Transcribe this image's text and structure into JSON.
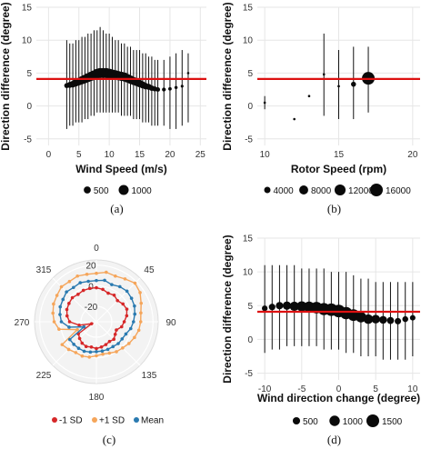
{
  "chart_data": [
    {
      "panel": "a",
      "caption": "(a)",
      "type": "scatter",
      "xlabel": "Wind Speed (m/s)",
      "ylabel": "Direction difference (degree)",
      "xlim": [
        -2,
        26
      ],
      "ylim": [
        -6,
        15
      ],
      "xticks": [
        "0",
        "5",
        "10",
        "15",
        "20",
        "25"
      ],
      "yticks": [
        "-5",
        "0",
        "5",
        "10",
        "15"
      ],
      "reference_line": 4.1,
      "reference_color": "#dd1111",
      "legend": {
        "title": "",
        "entries": [
          "500",
          "1000"
        ],
        "sizes": [
          500,
          1000
        ]
      },
      "points": [
        {
          "x": 3.0,
          "y": 3.1,
          "lo": -3.5,
          "hi": 10.0,
          "n": 250
        },
        {
          "x": 3.5,
          "y": 3.2,
          "lo": -3.0,
          "hi": 9.5,
          "n": 350
        },
        {
          "x": 4.0,
          "y": 3.3,
          "lo": -3.0,
          "hi": 9.5,
          "n": 450
        },
        {
          "x": 4.5,
          "y": 3.5,
          "lo": -2.5,
          "hi": 10.0,
          "n": 520
        },
        {
          "x": 5.0,
          "y": 3.7,
          "lo": -2.5,
          "hi": 10.0,
          "n": 600
        },
        {
          "x": 5.5,
          "y": 3.9,
          "lo": -2.5,
          "hi": 10.5,
          "n": 680
        },
        {
          "x": 6.0,
          "y": 4.1,
          "lo": -2.0,
          "hi": 10.5,
          "n": 750
        },
        {
          "x": 6.5,
          "y": 4.3,
          "lo": -2.0,
          "hi": 11.0,
          "n": 800
        },
        {
          "x": 7.0,
          "y": 4.5,
          "lo": -1.5,
          "hi": 11.0,
          "n": 850
        },
        {
          "x": 7.5,
          "y": 4.7,
          "lo": -1.5,
          "hi": 11.5,
          "n": 900
        },
        {
          "x": 8.0,
          "y": 4.9,
          "lo": -1.0,
          "hi": 11.5,
          "n": 950
        },
        {
          "x": 8.5,
          "y": 5.0,
          "lo": -1.0,
          "hi": 12.0,
          "n": 1000
        },
        {
          "x": 9.0,
          "y": 5.0,
          "lo": -1.0,
          "hi": 11.5,
          "n": 1000
        },
        {
          "x": 9.5,
          "y": 5.0,
          "lo": -1.0,
          "hi": 11.0,
          "n": 1000
        },
        {
          "x": 10.0,
          "y": 4.9,
          "lo": -1.0,
          "hi": 11.0,
          "n": 980
        },
        {
          "x": 10.5,
          "y": 4.8,
          "lo": -1.0,
          "hi": 10.5,
          "n": 950
        },
        {
          "x": 11.0,
          "y": 4.7,
          "lo": -1.0,
          "hi": 10.0,
          "n": 920
        },
        {
          "x": 11.5,
          "y": 4.6,
          "lo": -1.0,
          "hi": 10.0,
          "n": 880
        },
        {
          "x": 12.0,
          "y": 4.5,
          "lo": -1.5,
          "hi": 9.5,
          "n": 850
        },
        {
          "x": 12.5,
          "y": 4.4,
          "lo": -1.5,
          "hi": 9.5,
          "n": 800
        },
        {
          "x": 13.0,
          "y": 4.2,
          "lo": -1.5,
          "hi": 9.0,
          "n": 750
        },
        {
          "x": 13.5,
          "y": 4.0,
          "lo": -1.5,
          "hi": 9.0,
          "n": 700
        },
        {
          "x": 14.0,
          "y": 3.8,
          "lo": -2.0,
          "hi": 8.5,
          "n": 650
        },
        {
          "x": 14.5,
          "y": 3.6,
          "lo": -2.0,
          "hi": 8.5,
          "n": 600
        },
        {
          "x": 15.0,
          "y": 3.4,
          "lo": -2.0,
          "hi": 8.5,
          "n": 550
        },
        {
          "x": 15.5,
          "y": 3.2,
          "lo": -2.5,
          "hi": 8.0,
          "n": 480
        },
        {
          "x": 16.0,
          "y": 3.0,
          "lo": -2.5,
          "hi": 8.0,
          "n": 420
        },
        {
          "x": 16.5,
          "y": 2.9,
          "lo": -2.5,
          "hi": 7.5,
          "n": 360
        },
        {
          "x": 17.0,
          "y": 2.7,
          "lo": -3.0,
          "hi": 7.5,
          "n": 300
        },
        {
          "x": 17.5,
          "y": 2.6,
          "lo": -3.0,
          "hi": 7.0,
          "n": 250
        },
        {
          "x": 18.0,
          "y": 2.5,
          "lo": -3.0,
          "hi": 7.0,
          "n": 200
        },
        {
          "x": 19.0,
          "y": 2.5,
          "lo": -3.0,
          "hi": 7.0,
          "n": 150
        },
        {
          "x": 20.0,
          "y": 2.6,
          "lo": -3.5,
          "hi": 7.5,
          "n": 120
        },
        {
          "x": 21.0,
          "y": 2.8,
          "lo": -3.5,
          "hi": 8.0,
          "n": 100
        },
        {
          "x": 22.0,
          "y": 3.0,
          "lo": -3.0,
          "hi": 8.5,
          "n": 80
        },
        {
          "x": 23.0,
          "y": 5.0,
          "lo": -2.5,
          "hi": 8.0,
          "n": 50
        }
      ]
    },
    {
      "panel": "b",
      "caption": "(b)",
      "type": "scatter",
      "xlabel": "Rotor Speed (rpm)",
      "ylabel": "Direction difference (degree)",
      "xlim": [
        9.5,
        20.5
      ],
      "ylim": [
        -6,
        15
      ],
      "xticks": [
        "10",
        "15",
        "20"
      ],
      "yticks": [
        "-5",
        "0",
        "5",
        "10",
        "15"
      ],
      "reference_line": 4.1,
      "reference_color": "#dd1111",
      "legend": {
        "title": "",
        "entries": [
          "4000",
          "8000",
          "12000",
          "16000"
        ],
        "sizes": [
          4000,
          8000,
          12000,
          16000
        ]
      },
      "points": [
        {
          "x": 10.0,
          "y": 0.5,
          "lo": -0.5,
          "hi": 1.5,
          "n": 300
        },
        {
          "x": 12.0,
          "y": -2.0,
          "lo": -2.0,
          "hi": -2.0,
          "n": 200
        },
        {
          "x": 13.0,
          "y": 1.5,
          "lo": 1.5,
          "hi": 1.5,
          "n": 250
        },
        {
          "x": 14.0,
          "y": 4.8,
          "lo": -1.5,
          "hi": 11.0,
          "n": 350
        },
        {
          "x": 15.0,
          "y": 3.0,
          "lo": -2.0,
          "hi": 8.5,
          "n": 600
        },
        {
          "x": 16.0,
          "y": 3.3,
          "lo": -2.0,
          "hi": 9.0,
          "n": 2500
        },
        {
          "x": 17.0,
          "y": 4.2,
          "lo": -1.0,
          "hi": 9.0,
          "n": 16000
        }
      ]
    },
    {
      "panel": "c",
      "caption": "(c)",
      "type": "radar",
      "angle_labels": [
        "0",
        "45",
        "90",
        "135",
        "180",
        "225",
        "270",
        "315"
      ],
      "radial_ticks": [
        "20",
        "0",
        "-20"
      ],
      "rlim": [
        -35,
        25
      ],
      "legend": [
        "-1 SD",
        "+1 SD",
        "Mean"
      ],
      "series": [
        {
          "name": "-1 SD",
          "color": "#d62728",
          "values": [
            -2,
            -3,
            -5,
            -4,
            -6,
            -4,
            -3,
            -5,
            -8,
            -10,
            -14,
            -13,
            -11,
            -12,
            -11,
            -10,
            -9,
            -10,
            -9,
            -10,
            -12,
            -14,
            -30,
            -18,
            -9,
            -6,
            -4,
            -3,
            -2,
            -3,
            -2,
            -2
          ]
        },
        {
          "name": "+1 SD",
          "color": "#f5a55a",
          "values": [
            12,
            14,
            13,
            15,
            18,
            16,
            12,
            9,
            8,
            7,
            5,
            3,
            1,
            0,
            -2,
            -3,
            -2,
            0,
            1,
            1,
            3,
            5,
            -15,
            2,
            6,
            8,
            10,
            11,
            13,
            12,
            13,
            12
          ]
        },
        {
          "name": "Mean",
          "color": "#2a7ab0",
          "values": [
            5,
            6,
            4,
            6,
            7,
            6,
            5,
            3,
            1,
            -1,
            -4,
            -5,
            -5,
            -6,
            -6,
            -6,
            -6,
            -5,
            -4,
            -4,
            -4,
            -4,
            -22,
            -8,
            -1,
            1,
            3,
            4,
            6,
            5,
            6,
            5
          ]
        }
      ]
    },
    {
      "panel": "d",
      "caption": "(d)",
      "type": "scatter",
      "xlabel": "Wind direction change (degree)",
      "ylabel": "Direction difference (degree)",
      "xlim": [
        -11,
        11
      ],
      "ylim": [
        -6,
        15
      ],
      "xticks": [
        "-10",
        "-5",
        "0",
        "5",
        "10"
      ],
      "yticks": [
        "-5",
        "0",
        "5",
        "10",
        "15"
      ],
      "reference_line": 4.1,
      "reference_color": "#dd1111",
      "legend": {
        "title": "",
        "entries": [
          "500",
          "1000",
          "1500"
        ],
        "sizes": [
          500,
          1000,
          1500
        ]
      },
      "points": [
        {
          "x": -10,
          "y": 4.6,
          "lo": -2.0,
          "hi": 11.0,
          "n": 300
        },
        {
          "x": -9,
          "y": 4.8,
          "lo": -1.5,
          "hi": 11.0,
          "n": 400
        },
        {
          "x": -8,
          "y": 5.0,
          "lo": -1.5,
          "hi": 11.0,
          "n": 500
        },
        {
          "x": -7,
          "y": 5.0,
          "lo": -1.0,
          "hi": 11.0,
          "n": 650
        },
        {
          "x": -6,
          "y": 4.9,
          "lo": -1.0,
          "hi": 11.0,
          "n": 800
        },
        {
          "x": -5,
          "y": 4.9,
          "lo": -1.0,
          "hi": 10.5,
          "n": 950
        },
        {
          "x": -4,
          "y": 4.8,
          "lo": -1.0,
          "hi": 10.5,
          "n": 1100
        },
        {
          "x": -3,
          "y": 4.7,
          "lo": -1.0,
          "hi": 10.5,
          "n": 1250
        },
        {
          "x": -2,
          "y": 4.5,
          "lo": -1.5,
          "hi": 10.5,
          "n": 1350
        },
        {
          "x": -1,
          "y": 4.4,
          "lo": -1.5,
          "hi": 10.0,
          "n": 1450
        },
        {
          "x": 0,
          "y": 4.2,
          "lo": -1.5,
          "hi": 10.0,
          "n": 1500
        },
        {
          "x": 1,
          "y": 3.9,
          "lo": -2.0,
          "hi": 10.0,
          "n": 1400
        },
        {
          "x": 2,
          "y": 3.6,
          "lo": -2.0,
          "hi": 9.5,
          "n": 1250
        },
        {
          "x": 3,
          "y": 3.3,
          "lo": -2.5,
          "hi": 9.0,
          "n": 1050
        },
        {
          "x": 4,
          "y": 3.0,
          "lo": -2.5,
          "hi": 9.0,
          "n": 850
        },
        {
          "x": 5,
          "y": 3.0,
          "lo": -2.5,
          "hi": 8.5,
          "n": 700
        },
        {
          "x": 6,
          "y": 2.9,
          "lo": -3.0,
          "hi": 8.5,
          "n": 560
        },
        {
          "x": 7,
          "y": 2.8,
          "lo": -3.0,
          "hi": 8.5,
          "n": 460
        },
        {
          "x": 8,
          "y": 2.7,
          "lo": -3.0,
          "hi": 8.5,
          "n": 380
        },
        {
          "x": 9,
          "y": 3.0,
          "lo": -3.0,
          "hi": 8.5,
          "n": 320
        },
        {
          "x": 10,
          "y": 3.2,
          "lo": -2.5,
          "hi": 8.5,
          "n": 280
        }
      ]
    }
  ]
}
